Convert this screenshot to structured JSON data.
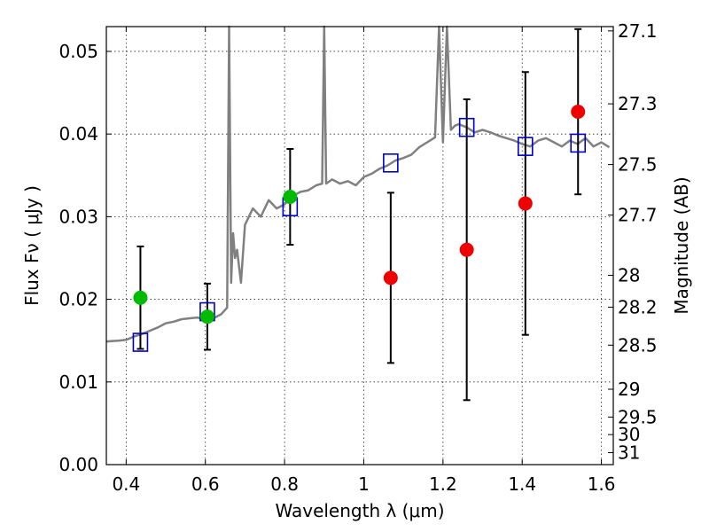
{
  "chart_data": {
    "type": "scatter",
    "title": "",
    "xlabel": "Wavelength  λ (μm)",
    "ylabel": "Flux  Fν  ( μJy )",
    "ylabel_right": "Magnitude (AB)",
    "xlim": [
      0.35,
      1.63
    ],
    "ylim": [
      0.0,
      0.053
    ],
    "x_ticks": [
      0.4,
      0.6,
      0.8,
      1.0,
      1.2,
      1.4,
      1.6
    ],
    "x_tick_labels": [
      "0.4",
      "0.6",
      "0.8",
      "1",
      "1.2",
      "1.4",
      "1.6"
    ],
    "y_ticks": [
      0.0,
      0.01,
      0.02,
      0.03,
      0.04,
      0.05
    ],
    "y_tick_labels": [
      "0.00",
      "0.01",
      "0.02",
      "0.03",
      "0.04",
      "0.05"
    ],
    "right_ticks": [
      {
        "mag": 27.1,
        "label": "27.1"
      },
      {
        "mag": 27.3,
        "label": "27.3"
      },
      {
        "mag": 27.5,
        "label": "27.5"
      },
      {
        "mag": 27.7,
        "label": "27.7"
      },
      {
        "mag": 28.0,
        "label": "28"
      },
      {
        "mag": 28.2,
        "label": "28.2"
      },
      {
        "mag": 28.5,
        "label": "28.5"
      },
      {
        "mag": 29.0,
        "label": "29"
      },
      {
        "mag": 29.5,
        "label": "29.5"
      },
      {
        "mag": 30.0,
        "label": "30"
      },
      {
        "mag": 31.0,
        "label": "31"
      }
    ],
    "grid": true,
    "colors": {
      "spectrum": "#808080",
      "model_points": "#0000cc",
      "detections": "#00bb00",
      "upper_measurements": "#ee0000",
      "errorbars": "#000000"
    },
    "spectrum": {
      "x": [
        0.35,
        0.38,
        0.4,
        0.42,
        0.44,
        0.46,
        0.48,
        0.5,
        0.52,
        0.54,
        0.56,
        0.58,
        0.6,
        0.62,
        0.64,
        0.655,
        0.66,
        0.665,
        0.67,
        0.675,
        0.68,
        0.69,
        0.7,
        0.72,
        0.74,
        0.76,
        0.78,
        0.8,
        0.82,
        0.84,
        0.86,
        0.88,
        0.895,
        0.9,
        0.905,
        0.92,
        0.94,
        0.96,
        0.98,
        1.0,
        1.02,
        1.04,
        1.06,
        1.08,
        1.1,
        1.12,
        1.14,
        1.16,
        1.18,
        1.19,
        1.2,
        1.21,
        1.22,
        1.23,
        1.24,
        1.26,
        1.28,
        1.3,
        1.32,
        1.34,
        1.36,
        1.38,
        1.4,
        1.42,
        1.44,
        1.46,
        1.48,
        1.5,
        1.52,
        1.54,
        1.56,
        1.58,
        1.6,
        1.62
      ],
      "y": [
        0.0149,
        0.015,
        0.0151,
        0.0155,
        0.0158,
        0.0162,
        0.0166,
        0.0171,
        0.0173,
        0.0176,
        0.0177,
        0.0178,
        0.0175,
        0.0177,
        0.0182,
        0.019,
        0.055,
        0.022,
        0.028,
        0.025,
        0.026,
        0.022,
        0.029,
        0.031,
        0.03,
        0.032,
        0.031,
        0.0315,
        0.0325,
        0.033,
        0.0332,
        0.0338,
        0.034,
        0.055,
        0.034,
        0.0345,
        0.034,
        0.0343,
        0.0338,
        0.0348,
        0.0352,
        0.0358,
        0.0362,
        0.0368,
        0.0371,
        0.0375,
        0.0384,
        0.039,
        0.0396,
        0.055,
        0.039,
        0.055,
        0.0405,
        0.041,
        0.0412,
        0.0408,
        0.0402,
        0.0405,
        0.0402,
        0.0398,
        0.0395,
        0.0392,
        0.0388,
        0.0385,
        0.0392,
        0.0395,
        0.039,
        0.0385,
        0.0392,
        0.0388,
        0.0395,
        0.0385,
        0.039,
        0.0384
      ]
    },
    "model_points": [
      {
        "x": 0.436,
        "y": 0.0148
      },
      {
        "x": 0.605,
        "y": 0.0185
      },
      {
        "x": 0.814,
        "y": 0.0312
      },
      {
        "x": 1.068,
        "y": 0.0365
      },
      {
        "x": 1.26,
        "y": 0.0408
      },
      {
        "x": 1.408,
        "y": 0.0385
      },
      {
        "x": 1.541,
        "y": 0.0389
      }
    ],
    "detections": [
      {
        "x": 0.436,
        "y": 0.0202,
        "err": 0.0062
      },
      {
        "x": 0.605,
        "y": 0.0179,
        "err": 0.004
      },
      {
        "x": 0.814,
        "y": 0.0324,
        "err": 0.0058
      }
    ],
    "upper_measurements": [
      {
        "x": 1.068,
        "y": 0.0226,
        "err": 0.0103
      },
      {
        "x": 1.26,
        "y": 0.026,
        "err": 0.0182
      },
      {
        "x": 1.408,
        "y": 0.0316,
        "err": 0.0159
      },
      {
        "x": 1.541,
        "y": 0.0427,
        "err": 0.01
      }
    ]
  }
}
